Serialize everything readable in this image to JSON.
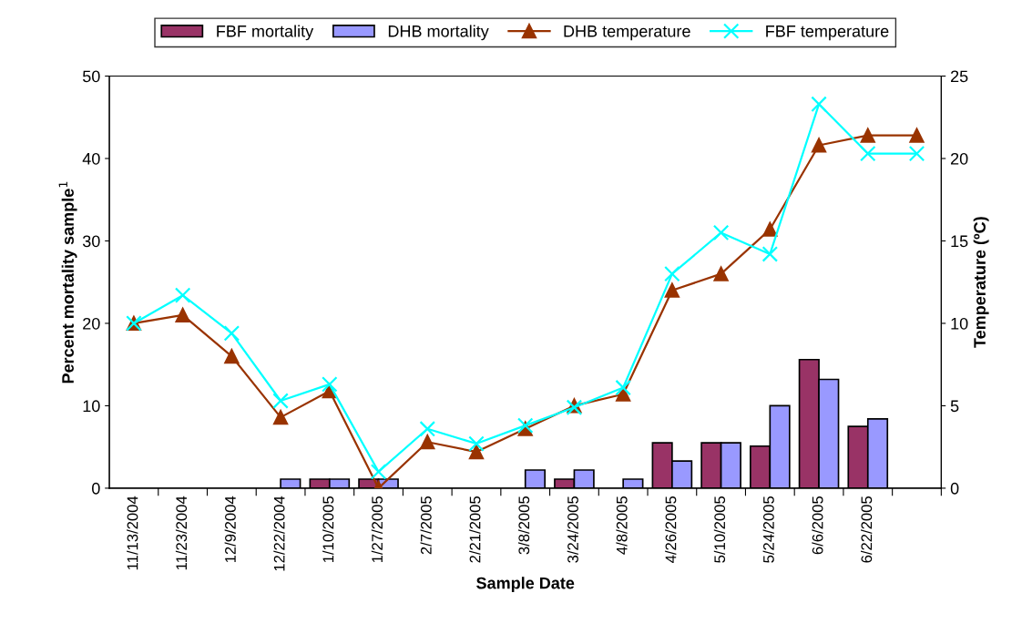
{
  "chart_data": {
    "type": "bar",
    "xlabel": "Sample Date",
    "ylabel": "Percent mortality sample$^{1}$",
    "y2label": "Temperature (ºC)",
    "categories": [
      "11/13/2004",
      "11/23/2004",
      "12/9/2004",
      "12/22/2004",
      "1/10/2005",
      "1/27/2005",
      "2/7/2005",
      "2/21/2005",
      "3/8/2005",
      "3/24/2005",
      "4/8/2005",
      "4/26/2005",
      "5/10/2005",
      "5/24/2005",
      "6/6/2005",
      "6/22/2005",
      null
    ],
    "series": [
      {
        "name": "FBF mortality",
        "color": "#993366",
        "values": [
          null,
          null,
          null,
          null,
          1.1,
          1.1,
          null,
          null,
          null,
          1.1,
          null,
          5.5,
          5.5,
          5.1,
          15.6,
          7.5,
          null
        ]
      },
      {
        "name": "DHB mortality",
        "color": "#9999ff",
        "values": [
          null,
          null,
          null,
          1.1,
          1.1,
          1.1,
          null,
          null,
          2.2,
          2.2,
          1.1,
          3.3,
          5.5,
          10.0,
          13.2,
          8.4,
          null
        ]
      },
      {
        "name": "DHB temperature",
        "type": "line",
        "axis": "y2",
        "marker": "triangle",
        "color": "#993300",
        "values": [
          10.0,
          10.5,
          8.0,
          4.3,
          5.9,
          0.0,
          2.8,
          2.2,
          3.6,
          5.0,
          5.7,
          12.0,
          13.0,
          15.7,
          20.8,
          21.4,
          21.4
        ]
      },
      {
        "name": "FBF temperature",
        "type": "line",
        "axis": "y2",
        "marker": "cross",
        "color": "#00ffff",
        "values": [
          10.0,
          11.7,
          9.4,
          5.3,
          6.3,
          1.0,
          3.6,
          2.7,
          3.8,
          4.9,
          6.1,
          13.0,
          15.5,
          14.2,
          23.3,
          20.3,
          20.3
        ]
      }
    ],
    "ylim": [
      0,
      50
    ],
    "yticks": [
      0,
      10,
      20,
      30,
      40,
      50
    ],
    "y2lim": [
      0,
      25
    ],
    "y2ticks": [
      0,
      5,
      10,
      15,
      20,
      25
    ],
    "legend": "top",
    "grid": false
  }
}
